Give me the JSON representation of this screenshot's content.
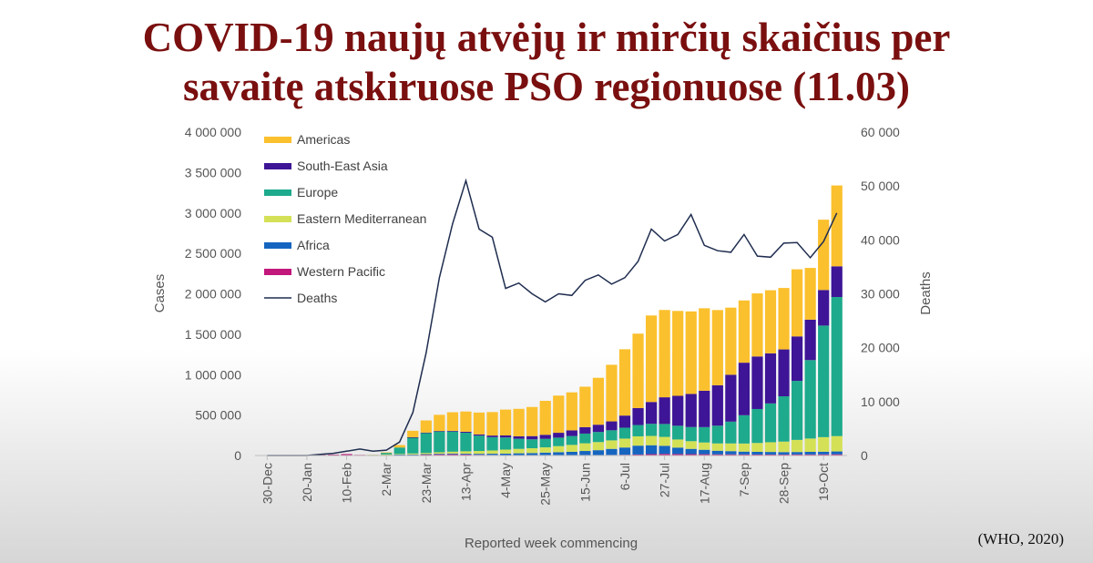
{
  "title": {
    "line1": "COVID-19 naujų atvėjų ir mirčių skaičius per",
    "line2": "savaitę atskiruose PSO regionuose (11.03)"
  },
  "source": "(WHO, 2020)",
  "chart_data": {
    "type": "bar",
    "stacked": true,
    "xlabel": "Reported week commencing",
    "ylabel": "Cases",
    "y2label": "Deaths",
    "ylim": [
      0,
      4000000
    ],
    "y2lim": [
      0,
      60000
    ],
    "y_ticks": [
      "0",
      "500 000",
      "1 000 000",
      "1 500 000",
      "2 000 000",
      "2 500 000",
      "3 000 000",
      "3 500 000",
      "4 000 000"
    ],
    "y2_ticks": [
      "0",
      "10 000",
      "20 000",
      "30 000",
      "40 000",
      "50 000",
      "60 000"
    ],
    "x_tick_labels": [
      "30-Dec",
      "20-Jan",
      "10-Feb",
      "2-Mar",
      "23-Mar",
      "13-Apr",
      "4-May",
      "25-May",
      "15-Jun",
      "6-Jul",
      "27-Jul",
      "17-Aug",
      "7-Sep",
      "28-Sep",
      "19-Oct"
    ],
    "x_tick_every": 3,
    "legend_position": "top-left",
    "grid": false,
    "categories": [
      "30-Dec",
      "6-Jan",
      "13-Jan",
      "20-Jan",
      "27-Jan",
      "3-Feb",
      "10-Feb",
      "17-Feb",
      "24-Feb",
      "2-Mar",
      "9-Mar",
      "16-Mar",
      "23-Mar",
      "30-Mar",
      "6-Apr",
      "13-Apr",
      "20-Apr",
      "27-Apr",
      "4-May",
      "11-May",
      "18-May",
      "25-May",
      "1-Jun",
      "8-Jun",
      "15-Jun",
      "22-Jun",
      "29-Jun",
      "6-Jul",
      "13-Jul",
      "20-Jul",
      "27-Jul",
      "3-Aug",
      "10-Aug",
      "17-Aug",
      "24-Aug",
      "31-Aug",
      "7-Sep",
      "14-Sep",
      "21-Sep",
      "28-Sep",
      "5-Oct",
      "12-Oct",
      "19-Oct",
      "26-Oct"
    ],
    "series": [
      {
        "name": "Western Pacific",
        "color": "#c2187b",
        "values": [
          0,
          0,
          0,
          2000,
          10000,
          12000,
          18000,
          8000,
          4000,
          8000,
          10000,
          10000,
          12000,
          14000,
          15000,
          12000,
          9000,
          7000,
          5000,
          5000,
          5000,
          6000,
          6000,
          6000,
          6000,
          6000,
          7000,
          9000,
          12000,
          17000,
          20000,
          18000,
          17000,
          16000,
          14000,
          14000,
          13000,
          12000,
          12000,
          12000,
          13000,
          13000,
          14000,
          15000
        ]
      },
      {
        "name": "Africa",
        "color": "#1565c0",
        "values": [
          0,
          0,
          0,
          0,
          0,
          0,
          0,
          0,
          0,
          500,
          1000,
          3000,
          5000,
          8000,
          10000,
          10000,
          12000,
          15000,
          18000,
          22000,
          25000,
          30000,
          35000,
          40000,
          50000,
          60000,
          75000,
          90000,
          110000,
          110000,
          100000,
          80000,
          65000,
          55000,
          45000,
          40000,
          35000,
          33000,
          32000,
          30000,
          30000,
          32000,
          33000,
          35000
        ]
      },
      {
        "name": "Eastern Mediterranean",
        "color": "#d4e157",
        "values": [
          0,
          0,
          0,
          0,
          0,
          0,
          0,
          0,
          1000,
          5000,
          8000,
          12000,
          15000,
          18000,
          22000,
          30000,
          35000,
          40000,
          50000,
          55000,
          60000,
          65000,
          75000,
          85000,
          95000,
          100000,
          105000,
          110000,
          115000,
          115000,
          110000,
          100000,
          95000,
          90000,
          90000,
          95000,
          100000,
          110000,
          120000,
          130000,
          150000,
          165000,
          180000,
          190000
        ]
      },
      {
        "name": "Europe",
        "color": "#1eaa8c",
        "values": [
          0,
          0,
          0,
          0,
          0,
          0,
          0,
          0,
          2000,
          20000,
          80000,
          200000,
          250000,
          260000,
          250000,
          230000,
          190000,
          165000,
          150000,
          125000,
          110000,
          105000,
          105000,
          110000,
          120000,
          125000,
          125000,
          135000,
          140000,
          150000,
          160000,
          170000,
          175000,
          190000,
          220000,
          270000,
          350000,
          420000,
          480000,
          560000,
          730000,
          970000,
          1380000,
          1720000
        ]
      },
      {
        "name": "South-East Asia",
        "color": "#3e1596",
        "values": [
          0,
          0,
          0,
          0,
          0,
          0,
          0,
          0,
          0,
          0,
          0,
          500,
          1500,
          3000,
          8000,
          12000,
          15000,
          20000,
          25000,
          30000,
          40000,
          50000,
          60000,
          70000,
          80000,
          90000,
          110000,
          150000,
          210000,
          270000,
          330000,
          370000,
          410000,
          450000,
          500000,
          580000,
          650000,
          650000,
          620000,
          580000,
          550000,
          500000,
          440000,
          380000
        ]
      },
      {
        "name": "Americas",
        "color": "#fbc02d",
        "values": [
          0,
          0,
          0,
          0,
          0,
          0,
          0,
          0,
          500,
          5000,
          30000,
          80000,
          150000,
          200000,
          230000,
          250000,
          270000,
          290000,
          320000,
          340000,
          360000,
          420000,
          460000,
          470000,
          500000,
          580000,
          700000,
          820000,
          920000,
          1070000,
          1080000,
          1050000,
          1020000,
          1020000,
          930000,
          830000,
          770000,
          780000,
          780000,
          760000,
          830000,
          640000,
          870000,
          1000000
        ]
      }
    ],
    "line_series": {
      "name": "Deaths",
      "color": "#1f2d4f",
      "axis": "y2",
      "values": [
        0,
        0,
        0,
        0,
        200,
        400,
        800,
        1200,
        800,
        1000,
        2500,
        8000,
        19000,
        33000,
        43000,
        51000,
        42000,
        40500,
        31000,
        32000,
        30000,
        28500,
        30000,
        29700,
        32500,
        33500,
        31800,
        33000,
        36000,
        42000,
        39800,
        41000,
        44700,
        39000,
        38000,
        37700,
        41000,
        37000,
        36800,
        39400,
        39500,
        36700,
        39700,
        45000
      ]
    }
  }
}
